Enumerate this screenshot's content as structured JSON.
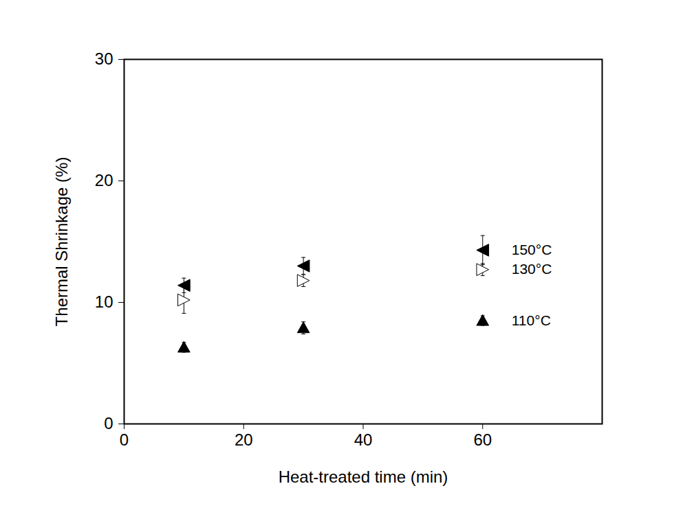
{
  "chart_data": {
    "type": "scatter",
    "x_label": "Heat-treated time (min)",
    "y_label": "Thermal Shrinkage (%)",
    "xlim": [
      0,
      80
    ],
    "xticks": [
      0,
      20,
      40,
      60
    ],
    "ylim": [
      0,
      30
    ],
    "yticks": [
      0,
      10,
      20,
      30
    ],
    "legend": "right",
    "series": [
      {
        "name": "150°C",
        "color": "#000000",
        "marker": "triangle-left",
        "x": [
          10,
          30,
          60
        ],
        "values": [
          11.4,
          13.0,
          14.3
        ],
        "errors": [
          0.6,
          0.7,
          1.2
        ]
      },
      {
        "name": "130°C",
        "color": "#000000",
        "marker": "open-triangle-right",
        "x": [
          10,
          30,
          60
        ],
        "values": [
          10.2,
          11.8,
          12.7
        ],
        "errors": [
          1.1,
          0.5,
          0.5
        ]
      },
      {
        "name": "110°C",
        "color": "#000000",
        "marker": "triangle-up",
        "x": [
          10,
          30,
          60
        ],
        "values": [
          6.3,
          7.9,
          8.5
        ],
        "errors": [
          0.4,
          0.5,
          0.4
        ]
      }
    ]
  }
}
